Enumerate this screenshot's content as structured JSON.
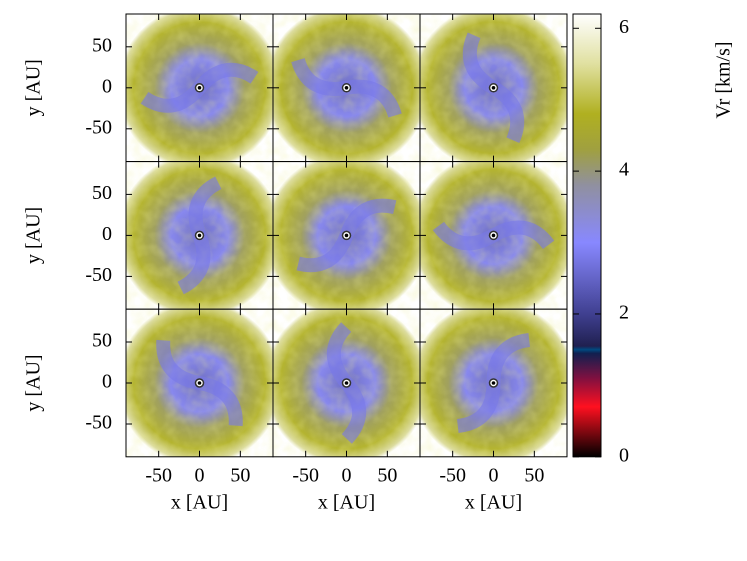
{
  "chart_data": {
    "type": "image-grid",
    "xlabel": "x [AU]",
    "ylabel": "y [AU]",
    "xlim": [
      -90,
      90
    ],
    "ylim": [
      -90,
      90
    ],
    "xticks": [
      -50,
      0,
      50
    ],
    "yticks": [
      -50,
      0,
      50
    ],
    "rows": 3,
    "cols": 3,
    "colorbar": {
      "label": "Vr [km/s]",
      "lim": [
        0,
        6.2
      ],
      "ticks": [
        0,
        2,
        4,
        6
      ],
      "colormap": [
        {
          "value": 0,
          "color": "#000000"
        },
        {
          "value": 0.7,
          "color": "#ff1020"
        },
        {
          "value": 1.1,
          "color": "#801040"
        },
        {
          "value": 1.45,
          "color": "#102050"
        },
        {
          "value": 1.5,
          "color": "#004a80"
        },
        {
          "value": 1.55,
          "color": "#202050"
        },
        {
          "value": 2,
          "color": "#404090"
        },
        {
          "value": 3,
          "color": "#8888ff"
        },
        {
          "value": 3.8,
          "color": "#9090a0"
        },
        {
          "value": 4.3,
          "color": "#a0a040"
        },
        {
          "value": 4.8,
          "color": "#b0b020"
        },
        {
          "value": 5.5,
          "color": "#e0e0a0"
        },
        {
          "value": 6.2,
          "color": "#ffffff"
        }
      ]
    }
  }
}
